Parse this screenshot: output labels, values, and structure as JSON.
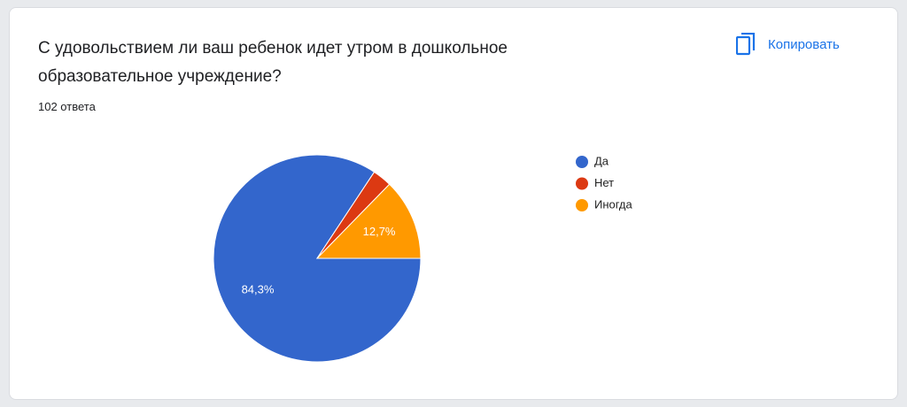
{
  "chart_data": {
    "type": "pie",
    "title": "С удовольствием ли ваш ребенок идет утром в дошкольное образовательное учреждение?",
    "subtitle": "102 ответа",
    "categories": [
      "Да",
      "Нет",
      "Иногда"
    ],
    "values": [
      84.3,
      3.0,
      12.7
    ],
    "value_labels": [
      "84,3%",
      null,
      "12,7%"
    ],
    "colors": [
      "#3366cc",
      "#dc3912",
      "#ff9900"
    ],
    "legend": "right"
  },
  "actions": {
    "copy": "Копировать"
  }
}
